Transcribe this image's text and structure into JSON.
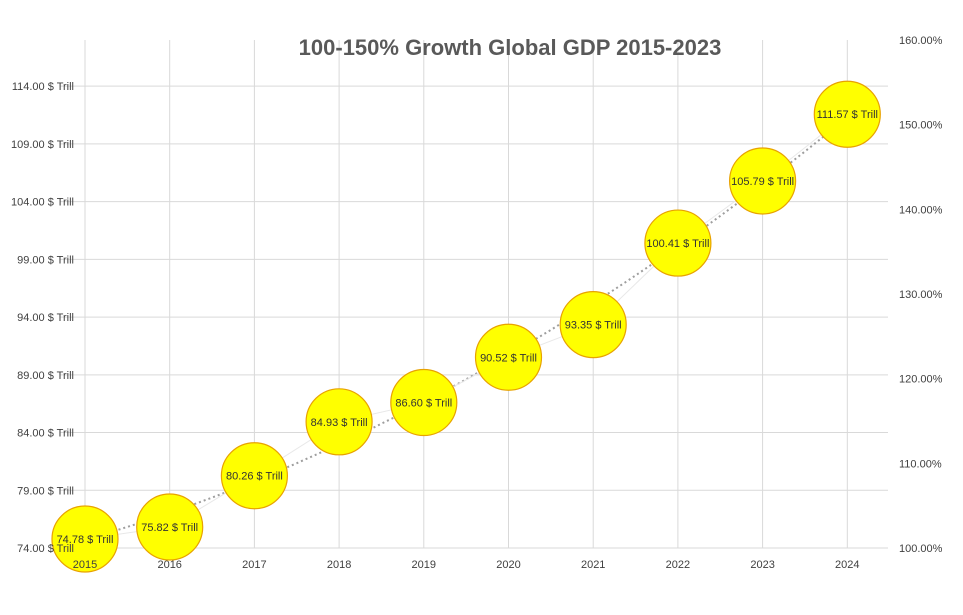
{
  "chart_data": {
    "type": "scatter",
    "title": "100-150% Growth Global GDP 2015-2023",
    "x": [
      "2015",
      "2016",
      "2017",
      "2018",
      "2019",
      "2020",
      "2021",
      "2022",
      "2023",
      "2024"
    ],
    "series": [
      {
        "values": [
          74.78,
          75.82,
          80.26,
          84.93,
          86.6,
          90.52,
          93.35,
          100.41,
          105.79,
          111.57
        ],
        "labels": [
          "74.78 $ Trill",
          "75.82 $ Trill",
          "80.26 $ Trill",
          "84.93 $ Trill",
          "86.60 $ Trill",
          "90.52 $ Trill",
          "93.35 $ Trill",
          "100.41 $ Trill",
          "105.79 $ Trill",
          "111.57 $ Trill"
        ],
        "marker": "bubble",
        "color": "#FFFF00",
        "edge_color": "#E8A200"
      }
    ],
    "trendline": {
      "style": "dotted",
      "color": "#9E9E9E"
    },
    "y_left": {
      "ticks": [
        74,
        79,
        84,
        89,
        94,
        99,
        104,
        109,
        114
      ],
      "tick_labels": [
        "74.00 $ Trill",
        "79.00 $ Trill",
        "84.00 $ Trill",
        "89.00 $ Trill",
        "94.00 $ Trill",
        "99.00 $ Trill",
        "104.00 $ Trill",
        "109.00 $ Trill",
        "114.00 $ Trill"
      ],
      "ylim": [
        74,
        118
      ]
    },
    "y_right": {
      "ticks": [
        100,
        110,
        120,
        130,
        140,
        150,
        160
      ],
      "tick_labels": [
        "100.00%",
        "110.00%",
        "120.00%",
        "130.00%",
        "140.00%",
        "150.00%",
        "160.00%"
      ],
      "ylim": [
        100,
        160
      ]
    },
    "grid": true,
    "legend": "none"
  }
}
